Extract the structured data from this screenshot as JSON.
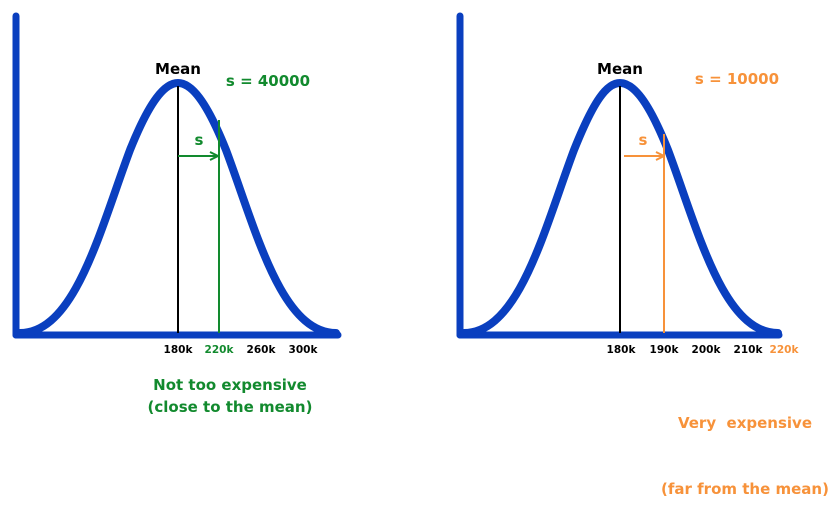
{
  "colors": {
    "curve": "#0a3fbf",
    "axis": "#0a3fbf",
    "mean_line": "#000000",
    "left_accent": "#128a2e",
    "right_accent": "#f7923a"
  },
  "left": {
    "mean_label": "Mean",
    "s_value_label": "s = 40000",
    "s_arrow_label": "s",
    "ticks": [
      "180k",
      "220k",
      "260k",
      "300k"
    ],
    "caption_line1": "Not too expensive",
    "caption_line2": "(close to the mean)"
  },
  "right": {
    "mean_label": "Mean",
    "s_value_label": "s = 10000",
    "s_arrow_label": "s",
    "ticks": [
      "180k",
      "190k",
      "200k",
      "210k",
      "220k"
    ],
    "caption_line1": "Very  expensive",
    "caption_line2": "(far from the mean)"
  }
}
